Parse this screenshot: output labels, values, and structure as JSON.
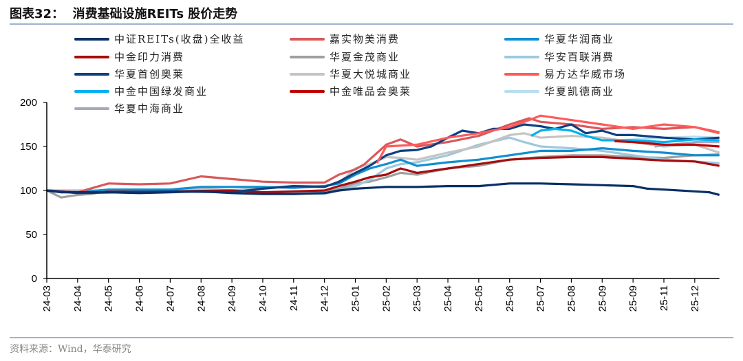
{
  "header": {
    "title": "图表32：  消费基础设施REITs 股价走势"
  },
  "footer": {
    "source": "资料来源：Wind，华泰研究"
  },
  "chart_data": {
    "type": "line",
    "title": "",
    "xlabel": "",
    "ylabel": "",
    "ylim": [
      0,
      200
    ],
    "yticks": [
      "0",
      "50",
      "100",
      "150",
      "200"
    ],
    "xlim": [
      "2024-03-01",
      "2025-12-25"
    ],
    "xtick_labels": [
      "24-03",
      "24-04",
      "24-05",
      "24-06",
      "24-07",
      "24-08",
      "24-09",
      "24-10",
      "24-11",
      "24-12",
      "25-01",
      "25-02",
      "25-03",
      "25-04",
      "25-05",
      "25-06",
      "25-07",
      "25-08",
      "25-09",
      "25-09",
      "25-11",
      "25-12"
    ],
    "grid": false,
    "legend_placement": "top",
    "series": [
      {
        "name": "中证REITs(收盘)全收益",
        "color": "#0a2f66",
        "points": [
          [
            "2024-03-01",
            100
          ],
          [
            "2024-03-15",
            98
          ],
          [
            "2024-04-01",
            98
          ],
          [
            "2024-05-01",
            98
          ],
          [
            "2024-06-01",
            97
          ],
          [
            "2024-07-01",
            98
          ],
          [
            "2024-08-01",
            99
          ],
          [
            "2024-09-01",
            97
          ],
          [
            "2024-10-01",
            96
          ],
          [
            "2024-11-01",
            96
          ],
          [
            "2024-12-01",
            97
          ],
          [
            "2024-12-15",
            100
          ],
          [
            "2025-01-01",
            102
          ],
          [
            "2025-01-15",
            103
          ],
          [
            "2025-02-01",
            104
          ],
          [
            "2025-03-01",
            104
          ],
          [
            "2025-04-01",
            105
          ],
          [
            "2025-05-01",
            105
          ],
          [
            "2025-06-01",
            108
          ],
          [
            "2025-07-01",
            108
          ],
          [
            "2025-08-01",
            107
          ],
          [
            "2025-09-01",
            106
          ],
          [
            "2025-10-01",
            105
          ],
          [
            "2025-10-15",
            102
          ],
          [
            "2025-11-01",
            101
          ],
          [
            "2025-12-01",
            99
          ],
          [
            "2025-12-15",
            98
          ],
          [
            "2025-12-25",
            95
          ]
        ]
      },
      {
        "name": "嘉实物美消费",
        "color": "#d9585a",
        "points": [
          [
            "2024-03-01",
            100
          ],
          [
            "2024-04-01",
            98
          ],
          [
            "2024-05-01",
            108
          ],
          [
            "2024-06-01",
            107
          ],
          [
            "2024-07-01",
            108
          ],
          [
            "2024-08-01",
            116
          ],
          [
            "2024-09-01",
            113
          ],
          [
            "2024-10-01",
            110
          ],
          [
            "2024-11-01",
            109
          ],
          [
            "2024-12-01",
            109
          ],
          [
            "2024-12-15",
            118
          ],
          [
            "2025-01-01",
            124
          ],
          [
            "2025-01-10",
            130
          ],
          [
            "2025-02-01",
            152
          ],
          [
            "2025-02-15",
            158
          ],
          [
            "2025-03-01",
            150
          ],
          [
            "2025-04-01",
            155
          ],
          [
            "2025-05-01",
            162
          ],
          [
            "2025-06-01",
            175
          ],
          [
            "2025-06-20",
            182
          ],
          [
            "2025-07-01",
            178
          ],
          [
            "2025-08-01",
            175
          ],
          [
            "2025-09-01",
            170
          ],
          [
            "2025-10-01",
            172
          ],
          [
            "2025-11-01",
            170
          ],
          [
            "2025-12-01",
            172
          ],
          [
            "2025-12-25",
            166
          ]
        ]
      },
      {
        "name": "华夏华润商业",
        "color": "#0f8fd0",
        "points": [
          [
            "2024-03-01",
            100
          ],
          [
            "2024-04-01",
            98
          ],
          [
            "2024-05-01",
            101
          ],
          [
            "2024-07-01",
            101
          ],
          [
            "2024-08-01",
            104
          ],
          [
            "2024-09-01",
            104
          ],
          [
            "2024-10-01",
            104
          ],
          [
            "2024-11-01",
            103
          ],
          [
            "2024-12-01",
            105
          ],
          [
            "2024-12-15",
            108
          ],
          [
            "2025-01-01",
            118
          ],
          [
            "2025-01-15",
            125
          ],
          [
            "2025-02-01",
            130
          ],
          [
            "2025-02-15",
            135
          ],
          [
            "2025-03-01",
            128
          ],
          [
            "2025-04-01",
            132
          ],
          [
            "2025-05-01",
            135
          ],
          [
            "2025-06-01",
            140
          ],
          [
            "2025-07-01",
            145
          ],
          [
            "2025-08-01",
            145
          ],
          [
            "2025-09-01",
            148
          ],
          [
            "2025-10-01",
            145
          ],
          [
            "2025-11-01",
            143
          ],
          [
            "2025-12-01",
            140
          ],
          [
            "2025-12-25",
            140
          ]
        ]
      },
      {
        "name": "中金印力消费",
        "color": "#a50d0d",
        "points": [
          [
            "2024-03-01",
            100
          ],
          [
            "2024-04-01",
            98
          ],
          [
            "2024-05-01",
            99
          ],
          [
            "2024-07-01",
            99
          ],
          [
            "2024-09-01",
            100
          ],
          [
            "2024-10-01",
            98
          ],
          [
            "2024-11-01",
            99
          ],
          [
            "2024-12-01",
            100
          ],
          [
            "2024-12-15",
            105
          ],
          [
            "2025-01-01",
            110
          ],
          [
            "2025-01-15",
            115
          ],
          [
            "2025-02-01",
            118
          ],
          [
            "2025-02-15",
            125
          ],
          [
            "2025-03-01",
            120
          ],
          [
            "2025-04-01",
            125
          ],
          [
            "2025-05-01",
            130
          ],
          [
            "2025-06-01",
            135
          ],
          [
            "2025-07-01",
            137
          ],
          [
            "2025-08-01",
            138
          ],
          [
            "2025-09-01",
            138
          ],
          [
            "2025-10-01",
            136
          ],
          [
            "2025-11-01",
            134
          ],
          [
            "2025-12-01",
            133
          ],
          [
            "2025-12-25",
            128
          ]
        ]
      },
      {
        "name": "华夏金茂商业",
        "color": "#a0a0a0",
        "points": [
          [
            "2024-03-01",
            100
          ],
          [
            "2024-03-15",
            92
          ],
          [
            "2024-04-01",
            95
          ],
          [
            "2024-04-15",
            96
          ],
          [
            "2024-05-01",
            100
          ],
          [
            "2024-06-01",
            100
          ],
          [
            "2024-07-01",
            100
          ],
          [
            "2024-08-01",
            101
          ],
          [
            "2024-09-01",
            98
          ],
          [
            "2024-10-01",
            97
          ],
          [
            "2024-11-01",
            96
          ],
          [
            "2024-12-01",
            98
          ],
          [
            "2024-12-15",
            102
          ],
          [
            "2025-01-01",
            108
          ],
          [
            "2025-01-15",
            110
          ],
          [
            "2025-02-01",
            115
          ],
          [
            "2025-02-15",
            120
          ],
          [
            "2025-03-01",
            118
          ],
          [
            "2025-04-01",
            125
          ],
          [
            "2025-05-01",
            128
          ],
          [
            "2025-06-01",
            135
          ],
          [
            "2025-07-01",
            138
          ],
          [
            "2025-08-01",
            140
          ],
          [
            "2025-09-01",
            140
          ],
          [
            "2025-10-01",
            138
          ],
          [
            "2025-11-01",
            137
          ],
          [
            "2025-12-01",
            140
          ],
          [
            "2025-12-25",
            141
          ]
        ]
      },
      {
        "name": "华安百联消费",
        "color": "#9ec8dc",
        "points": [
          [
            "2024-03-01",
            100
          ],
          [
            "2024-05-01",
            100
          ],
          [
            "2024-07-01",
            100
          ],
          [
            "2024-09-01",
            98
          ],
          [
            "2024-10-01",
            96
          ],
          [
            "2024-11-01",
            97
          ],
          [
            "2024-12-01",
            96
          ],
          [
            "2024-12-15",
            100
          ],
          [
            "2025-01-01",
            105
          ],
          [
            "2025-01-15",
            112
          ],
          [
            "2025-02-01",
            125
          ],
          [
            "2025-02-15",
            130
          ],
          [
            "2025-03-01",
            132
          ],
          [
            "2025-04-01",
            140
          ],
          [
            "2025-05-01",
            152
          ],
          [
            "2025-06-01",
            160
          ],
          [
            "2025-06-15",
            155
          ],
          [
            "2025-07-01",
            150
          ],
          [
            "2025-08-01",
            148
          ],
          [
            "2025-09-01",
            145
          ],
          [
            "2025-10-01",
            140
          ],
          [
            "2025-11-01",
            135
          ],
          [
            "2025-12-01",
            133
          ],
          [
            "2025-12-25",
            131
          ]
        ]
      },
      {
        "name": "华夏首创奥莱",
        "color": "#0d3f82",
        "points": [
          [
            "2024-03-01",
            100
          ],
          [
            "2024-04-01",
            97
          ],
          [
            "2024-07-01",
            99
          ],
          [
            "2024-09-01",
            98
          ],
          [
            "2024-10-01",
            102
          ],
          [
            "2024-11-01",
            105
          ],
          [
            "2024-12-01",
            104
          ],
          [
            "2024-12-15",
            110
          ],
          [
            "2025-01-01",
            120
          ],
          [
            "2025-01-15",
            128
          ],
          [
            "2025-02-01",
            140
          ],
          [
            "2025-02-15",
            145
          ],
          [
            "2025-03-01",
            146
          ],
          [
            "2025-03-15",
            150
          ],
          [
            "2025-04-01",
            160
          ],
          [
            "2025-04-15",
            168
          ],
          [
            "2025-05-01",
            165
          ],
          [
            "2025-05-15",
            170
          ],
          [
            "2025-06-01",
            170
          ],
          [
            "2025-06-15",
            175
          ],
          [
            "2025-07-01",
            173
          ],
          [
            "2025-07-15",
            170
          ],
          [
            "2025-08-01",
            175
          ],
          [
            "2025-08-15",
            165
          ],
          [
            "2025-09-01",
            168
          ],
          [
            "2025-09-15",
            163
          ],
          [
            "2025-10-01",
            163
          ],
          [
            "2025-11-01",
            160
          ],
          [
            "2025-12-01",
            158
          ],
          [
            "2025-12-25",
            160
          ]
        ]
      },
      {
        "name": "华夏大悦城商业",
        "color": "#c4c4c4",
        "points": [
          [
            "2024-03-01",
            100
          ],
          [
            "2024-04-01",
            97
          ],
          [
            "2024-05-01",
            100
          ],
          [
            "2024-07-01",
            100
          ],
          [
            "2024-08-01",
            102
          ],
          [
            "2024-09-01",
            100
          ],
          [
            "2024-10-01",
            103
          ],
          [
            "2024-11-01",
            105
          ],
          [
            "2024-12-01",
            105
          ],
          [
            "2024-12-15",
            108
          ],
          [
            "2025-01-01",
            125
          ],
          [
            "2025-01-15",
            130
          ],
          [
            "2025-02-01",
            138
          ],
          [
            "2025-02-15",
            137
          ],
          [
            "2025-03-01",
            135
          ],
          [
            "2025-04-01",
            143
          ],
          [
            "2025-05-01",
            150
          ],
          [
            "2025-06-01",
            163
          ],
          [
            "2025-06-15",
            165
          ],
          [
            "2025-07-01",
            160
          ],
          [
            "2025-08-01",
            162
          ],
          [
            "2025-09-01",
            160
          ],
          [
            "2025-10-01",
            155
          ],
          [
            "2025-11-01",
            150
          ],
          [
            "2025-12-01",
            152
          ],
          [
            "2025-12-25",
            143
          ]
        ]
      },
      {
        "name": "易方达华威市场",
        "color": "#ff5a5a",
        "points": [
          [
            "2025-01-22",
            131
          ],
          [
            "2025-02-01",
            150
          ],
          [
            "2025-03-01",
            152
          ],
          [
            "2025-04-01",
            160
          ],
          [
            "2025-05-01",
            165
          ],
          [
            "2025-06-01",
            172
          ],
          [
            "2025-06-20",
            180
          ],
          [
            "2025-07-01",
            185
          ],
          [
            "2025-08-01",
            180
          ],
          [
            "2025-09-01",
            175
          ],
          [
            "2025-10-01",
            170
          ],
          [
            "2025-11-01",
            175
          ],
          [
            "2025-12-01",
            172
          ],
          [
            "2025-12-25",
            165
          ]
        ]
      },
      {
        "name": "中金中国绿发商业",
        "color": "#00b0f0",
        "points": [
          [
            "2025-06-22",
            162
          ],
          [
            "2025-07-01",
            168
          ],
          [
            "2025-07-15",
            170
          ],
          [
            "2025-08-01",
            168
          ],
          [
            "2025-08-15",
            162
          ],
          [
            "2025-09-01",
            157
          ],
          [
            "2025-10-01",
            157
          ],
          [
            "2025-11-01",
            155
          ],
          [
            "2025-12-01",
            158
          ],
          [
            "2025-12-25",
            157
          ]
        ]
      },
      {
        "name": "中金唯品会奥莱",
        "color": "#c00000",
        "points": [
          [
            "2025-09-13",
            156
          ],
          [
            "2025-10-01",
            155
          ],
          [
            "2025-11-01",
            152
          ],
          [
            "2025-12-01",
            152
          ],
          [
            "2025-12-25",
            150
          ]
        ]
      },
      {
        "name": "华夏凯德商业",
        "color": "#b7def0",
        "points": [
          [
            "2025-09-13",
            157
          ],
          [
            "2025-10-01",
            158
          ],
          [
            "2025-11-01",
            160
          ],
          [
            "2025-12-01",
            161
          ],
          [
            "2025-12-25",
            160
          ]
        ]
      },
      {
        "name": "华夏中海商业",
        "color": "#a6aabb",
        "points": [
          [
            "2025-10-22",
            150
          ],
          [
            "2025-11-01",
            151
          ],
          [
            "2025-12-01",
            155
          ],
          [
            "2025-12-25",
            155
          ]
        ]
      }
    ]
  }
}
